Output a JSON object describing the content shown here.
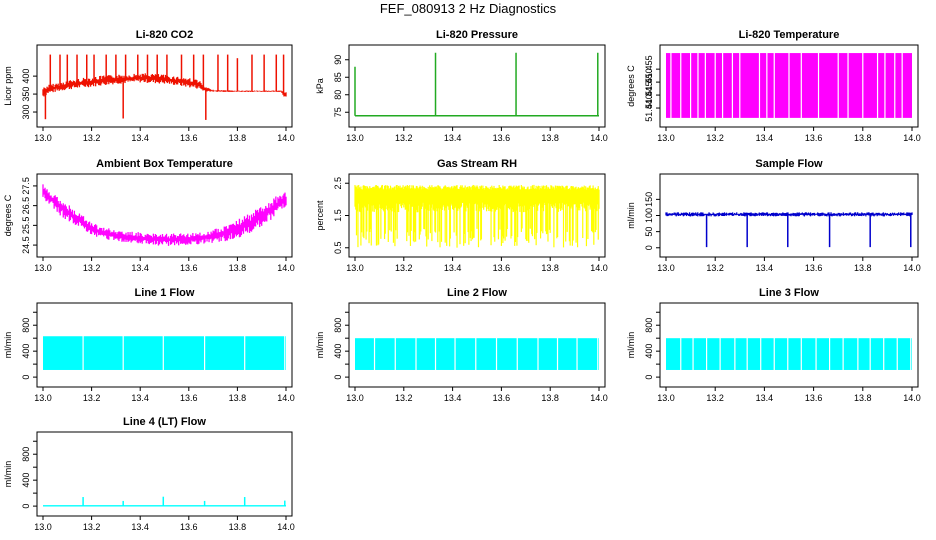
{
  "title": "FEF_080913  2 Hz Diagnostics",
  "colors": {
    "co2": "#ee1100",
    "pressure": "#22aa22",
    "temperature": "#ff00ff",
    "ambient": "#ff00ff",
    "rh": "#ffff00",
    "sample": "#0000cc",
    "line": "#00ffff"
  },
  "chart_data": [
    {
      "type": "line",
      "title": "Li-820 CO2",
      "ylabel": "Licor ppm",
      "xlim": [
        13.0,
        14.0
      ],
      "ylim": [
        275,
        470
      ],
      "x_ticks": [
        "13.0",
        "13.2",
        "13.4",
        "13.6",
        "13.8",
        "14.0"
      ],
      "y_ticks": [
        300,
        350,
        400
      ],
      "color_key": "co2",
      "series": [
        {
          "style": "band",
          "x": [
            13.0,
            13.02,
            13.05,
            13.1,
            13.15,
            13.2,
            13.25,
            13.3,
            13.35,
            13.4,
            13.45,
            13.5,
            13.55,
            13.6,
            13.64,
            13.66,
            13.7,
            13.8,
            13.9,
            13.98,
            14.0
          ],
          "low": [
            340,
            350,
            355,
            362,
            366,
            370,
            374,
            378,
            380,
            382,
            380,
            378,
            374,
            368,
            364,
            358,
            356,
            356,
            356,
            356,
            334
          ],
          "high": [
            370,
            376,
            380,
            388,
            394,
            398,
            402,
            404,
            406,
            408,
            408,
            404,
            400,
            396,
            392,
            372,
            362,
            360,
            360,
            360,
            358
          ]
        },
        {
          "style": "spikes",
          "x": [
            13.03,
            13.07,
            13.1,
            13.14,
            13.18,
            13.21,
            13.26,
            13.3,
            13.34,
            13.39,
            13.43,
            13.47,
            13.51,
            13.57,
            13.62,
            13.66,
            13.72,
            13.76,
            13.8,
            13.86,
            13.91,
            13.96,
            13.99
          ],
          "y": [
            460,
            460,
            460,
            460,
            460,
            460,
            460,
            460,
            460,
            460,
            460,
            460,
            460,
            460,
            460,
            460,
            460,
            460,
            450,
            460,
            460,
            460,
            460
          ]
        },
        {
          "style": "spikes",
          "x": [
            13.01,
            13.33,
            13.67
          ],
          "y": [
            280,
            282,
            278
          ]
        }
      ]
    },
    {
      "type": "line",
      "title": "Li-820 Pressure",
      "ylabel": "kPa",
      "xlim": [
        13.0,
        14.0
      ],
      "ylim": [
        72.5,
        92.5
      ],
      "x_ticks": [
        "13.0",
        "13.2",
        "13.4",
        "13.6",
        "13.8",
        "14.0"
      ],
      "y_ticks": [
        75,
        80,
        85,
        90
      ],
      "color_key": "pressure",
      "series": [
        {
          "style": "line",
          "x": [
            13.0,
            14.0
          ],
          "y": [
            74.0,
            74.0
          ]
        },
        {
          "style": "spikes",
          "x": [
            13.0,
            13.33,
            13.66,
            13.995
          ],
          "y": [
            88,
            92,
            92,
            92
          ]
        }
      ]
    },
    {
      "type": "line",
      "title": "Li-820 Temperature",
      "ylabel": "degrees C",
      "xlim": [
        13.0,
        14.0
      ],
      "ylim": [
        51.435,
        51.462
      ],
      "x_ticks": [
        "13.0",
        "13.2",
        "13.4",
        "13.6",
        "13.8",
        "14.0"
      ],
      "y_ticks": [
        "51.440",
        "51.445",
        "51.450",
        "51.455"
      ],
      "color_key": "temperature",
      "series": [
        {
          "style": "filled",
          "x": [
            13.0,
            14.0
          ],
          "low": [
            51.4362,
            51.4362
          ],
          "high": [
            51.4612,
            51.4612
          ],
          "gaps": [
            13.02,
            13.06,
            13.1,
            13.13,
            13.16,
            13.2,
            13.23,
            13.27,
            13.3,
            13.38,
            13.41,
            13.44,
            13.5,
            13.55,
            13.62,
            13.7,
            13.74,
            13.8,
            13.86,
            13.89,
            13.93,
            13.96
          ]
        }
      ]
    },
    {
      "type": "line",
      "title": "Ambient Box Temperature",
      "ylabel": "degrees C",
      "xlim": [
        13.0,
        14.0
      ],
      "ylim": [
        24.2,
        27.8
      ],
      "x_ticks": [
        "13.0",
        "13.2",
        "13.4",
        "13.6",
        "13.8",
        "14.0"
      ],
      "y_ticks": [
        "24.5",
        "25.5",
        "26.5",
        "27.5"
      ],
      "color_key": "ambient",
      "series": [
        {
          "style": "band",
          "x": [
            13.0,
            13.05,
            13.1,
            13.15,
            13.2,
            13.25,
            13.3,
            13.35,
            13.4,
            13.45,
            13.5,
            13.55,
            13.6,
            13.65,
            13.7,
            13.75,
            13.8,
            13.85,
            13.9,
            13.95,
            14.0
          ],
          "low": [
            26.9,
            26.2,
            25.7,
            25.4,
            25.0,
            24.8,
            24.7,
            24.6,
            24.55,
            24.5,
            24.45,
            24.45,
            24.5,
            24.55,
            24.6,
            24.7,
            24.85,
            25.1,
            25.4,
            25.9,
            26.4
          ],
          "high": [
            27.6,
            27.1,
            26.6,
            26.1,
            25.7,
            25.4,
            25.3,
            25.2,
            25.15,
            25.1,
            25.1,
            25.1,
            25.1,
            25.15,
            25.3,
            25.55,
            25.8,
            26.1,
            26.5,
            26.9,
            27.3
          ]
        }
      ]
    },
    {
      "type": "line",
      "title": "Gas Stream RH",
      "ylabel": "percent",
      "xlim": [
        13.0,
        14.0
      ],
      "ylim": [
        0.4,
        2.6
      ],
      "x_ticks": [
        "13.0",
        "13.2",
        "13.4",
        "13.6",
        "13.8",
        "14.0"
      ],
      "y_ticks": [
        "0.5",
        "1.5",
        "2.5"
      ],
      "color_key": "rh",
      "series": [
        {
          "style": "noise",
          "x": [
            13.0,
            14.0
          ],
          "low": [
            0.5,
            0.5
          ],
          "high": [
            2.45,
            2.45
          ],
          "core_low": [
            1.6,
            1.6
          ],
          "core_high": [
            2.3,
            2.3
          ]
        }
      ]
    },
    {
      "type": "line",
      "title": "Sample Flow",
      "ylabel": "ml/min",
      "xlim": [
        13.0,
        14.0
      ],
      "ylim": [
        -10,
        210
      ],
      "x_ticks": [
        "13.0",
        "13.2",
        "13.4",
        "13.6",
        "13.8",
        "14.0"
      ],
      "y_ticks": [
        0,
        50,
        100,
        150
      ],
      "color_key": "sample",
      "series": [
        {
          "style": "band",
          "x": [
            13.0,
            14.0
          ],
          "low": [
            97,
            97
          ],
          "high": [
            110,
            110
          ]
        },
        {
          "style": "spikes",
          "x": [
            13.165,
            13.33,
            13.495,
            13.665,
            13.83,
            13.995
          ],
          "y": [
            2,
            2,
            2,
            2,
            2,
            2
          ]
        }
      ]
    },
    {
      "type": "line",
      "title": "Line 1 Flow",
      "ylabel": "ml/min",
      "xlim": [
        13.0,
        14.0
      ],
      "ylim": [
        -60,
        1050
      ],
      "x_ticks": [
        "13.0",
        "13.2",
        "13.4",
        "13.6",
        "13.8",
        "14.0"
      ],
      "y_ticks": [
        0,
        400,
        800
      ],
      "y_minor_ticks": [
        200,
        600,
        1000
      ],
      "color_key": "line",
      "series": [
        {
          "style": "filled",
          "x": [
            13.0,
            14.0
          ],
          "low": [
            110,
            110
          ],
          "high": [
            630,
            630
          ],
          "gaps": [
            13.165,
            13.33,
            13.495,
            13.665,
            13.83,
            13.995
          ]
        }
      ]
    },
    {
      "type": "line",
      "title": "Line 2 Flow",
      "ylabel": "ml/min",
      "xlim": [
        13.0,
        14.0
      ],
      "ylim": [
        -60,
        1050
      ],
      "x_ticks": [
        "13.0",
        "13.2",
        "13.4",
        "13.6",
        "13.8",
        "14.0"
      ],
      "y_ticks": [
        0,
        400,
        800
      ],
      "y_minor_ticks": [
        200,
        600,
        1000
      ],
      "color_key": "line",
      "series": [
        {
          "style": "filled",
          "x": [
            13.0,
            14.0
          ],
          "low": [
            110,
            110
          ],
          "high": [
            600,
            600
          ],
          "gaps": [
            13.08,
            13.165,
            13.25,
            13.33,
            13.41,
            13.495,
            13.58,
            13.665,
            13.75,
            13.83,
            13.91,
            13.995
          ]
        }
      ]
    },
    {
      "type": "line",
      "title": "Line 3 Flow",
      "ylabel": "ml/min",
      "xlim": [
        13.0,
        14.0
      ],
      "ylim": [
        -60,
        1050
      ],
      "x_ticks": [
        "13.0",
        "13.2",
        "13.4",
        "13.6",
        "13.8",
        "14.0"
      ],
      "y_ticks": [
        0,
        400,
        800
      ],
      "y_minor_ticks": [
        200,
        600,
        1000
      ],
      "color_key": "line",
      "series": [
        {
          "style": "filled",
          "x": [
            13.0,
            14.0
          ],
          "low": [
            110,
            110
          ],
          "high": [
            600,
            600
          ],
          "gaps": [
            13.06,
            13.11,
            13.165,
            13.22,
            13.28,
            13.33,
            13.385,
            13.44,
            13.495,
            13.55,
            13.61,
            13.665,
            13.72,
            13.78,
            13.83,
            13.885,
            13.94,
            13.995
          ]
        }
      ]
    },
    {
      "type": "line",
      "title": "Line 4 (LT) Flow",
      "ylabel": "ml/min",
      "xlim": [
        13.0,
        14.0
      ],
      "ylim": [
        -60,
        1050
      ],
      "x_ticks": [
        "13.0",
        "13.2",
        "13.4",
        "13.6",
        "13.8",
        "14.0"
      ],
      "y_ticks": [
        0,
        400,
        800
      ],
      "y_minor_ticks": [
        200,
        600,
        1000
      ],
      "color_key": "line",
      "series": [
        {
          "style": "line",
          "x": [
            13.0,
            14.0
          ],
          "y": [
            5,
            5
          ]
        },
        {
          "style": "spikes",
          "x": [
            13.165,
            13.33,
            13.495,
            13.665,
            13.83,
            13.995
          ],
          "y": [
            140,
            80,
            145,
            80,
            140,
            85
          ]
        }
      ]
    }
  ]
}
